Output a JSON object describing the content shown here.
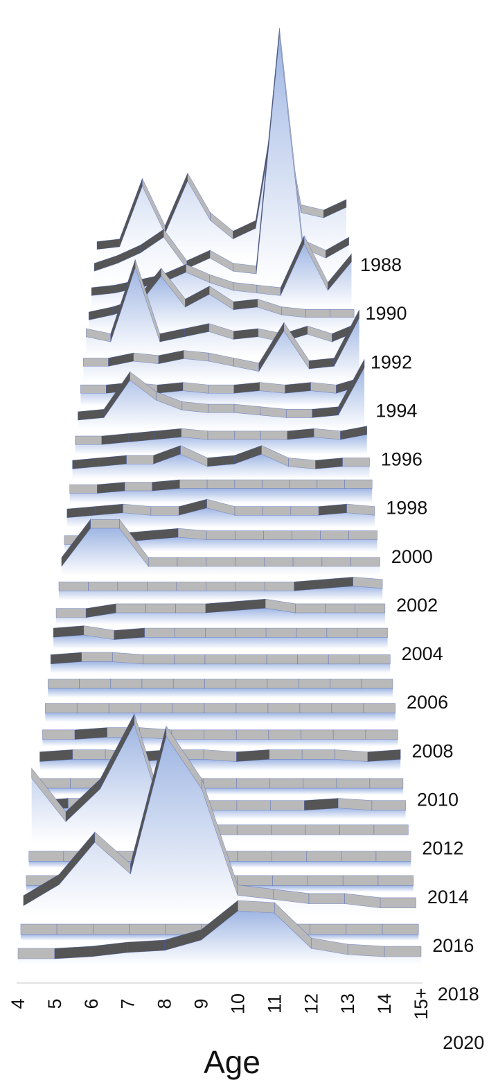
{
  "chart_data": {
    "type": "area",
    "title": "",
    "xlabel": "Age",
    "ylabel": "",
    "categories": [
      "4",
      "5",
      "6",
      "7",
      "8",
      "9",
      "10",
      "11",
      "12",
      "13",
      "14",
      "15+"
    ],
    "year_labels": [
      "1988",
      "1990",
      "1992",
      "1994",
      "1996",
      "1998",
      "2000",
      "2002",
      "2004",
      "2006",
      "2008",
      "2010",
      "2012",
      "2014",
      "2016",
      "2018",
      "2020"
    ],
    "ylim": [
      0,
      1
    ],
    "grid": false,
    "legend": "none",
    "colors": {
      "ribbon_top": "#b9b9b9",
      "ribbon_dark": "#555555",
      "fill_top": "#9fb6e3",
      "fill_bottom": "#ffffff",
      "baseline": "#3a56b8"
    },
    "series": [
      {
        "values": [
          0.04,
          0.05,
          0.28,
          0.1,
          0.3,
          0.15,
          0.08,
          0.12,
          0.65,
          0.18,
          0.16,
          0.2
        ]
      },
      {
        "values": [
          0.05,
          0.08,
          0.12,
          0.18,
          0.06,
          0.1,
          0.05,
          0.04,
          0.95,
          0.14,
          0.1,
          0.15
        ]
      },
      {
        "values": [
          0.05,
          0.06,
          0.08,
          0.1,
          0.14,
          0.1,
          0.07,
          0.06,
          0.05,
          0.25,
          0.07,
          0.18
        ]
      },
      {
        "values": [
          0.05,
          0.07,
          0.1,
          0.22,
          0.1,
          0.15,
          0.09,
          0.1,
          0.07,
          0.06,
          0.06,
          0.06
        ]
      },
      {
        "values": [
          0.08,
          0.06,
          0.35,
          0.06,
          0.08,
          0.1,
          0.07,
          0.08,
          0.06,
          0.09,
          0.06,
          0.1
        ]
      },
      {
        "values": [
          0.06,
          0.06,
          0.08,
          0.07,
          0.09,
          0.08,
          0.06,
          0.04,
          0.2,
          0.05,
          0.06,
          0.25
        ]
      },
      {
        "values": [
          0.05,
          0.05,
          0.06,
          0.05,
          0.06,
          0.05,
          0.05,
          0.06,
          0.05,
          0.06,
          0.05,
          0.08
        ]
      },
      {
        "values": [
          0.04,
          0.05,
          0.2,
          0.12,
          0.08,
          0.07,
          0.07,
          0.06,
          0.05,
          0.05,
          0.06,
          0.25
        ]
      },
      {
        "values": [
          0.04,
          0.04,
          0.05,
          0.06,
          0.07,
          0.06,
          0.06,
          0.06,
          0.06,
          0.07,
          0.06,
          0.08
        ]
      },
      {
        "values": [
          0.04,
          0.05,
          0.06,
          0.06,
          0.1,
          0.05,
          0.06,
          0.1,
          0.05,
          0.04,
          0.05,
          0.05
        ]
      },
      {
        "values": [
          0.04,
          0.04,
          0.05,
          0.05,
          0.06,
          0.06,
          0.06,
          0.06,
          0.06,
          0.06,
          0.06,
          0.06
        ]
      },
      {
        "values": [
          0.04,
          0.05,
          0.06,
          0.05,
          0.05,
          0.08,
          0.05,
          0.05,
          0.05,
          0.05,
          0.06,
          0.05
        ]
      },
      {
        "values": [
          0.03,
          0.03,
          0.04,
          0.05,
          0.06,
          0.05,
          0.05,
          0.05,
          0.05,
          0.05,
          0.05,
          0.05
        ]
      },
      {
        "values": [
          0.04,
          0.2,
          0.2,
          0.04,
          0.04,
          0.04,
          0.04,
          0.04,
          0.04,
          0.04,
          0.04,
          0.04
        ]
      },
      {
        "values": [
          0.04,
          0.04,
          0.04,
          0.04,
          0.04,
          0.04,
          0.04,
          0.04,
          0.04,
          0.05,
          0.06,
          0.05
        ]
      },
      {
        "values": [
          0.03,
          0.03,
          0.05,
          0.05,
          0.05,
          0.05,
          0.06,
          0.07,
          0.05,
          0.05,
          0.05,
          0.05
        ]
      },
      {
        "values": [
          0.05,
          0.06,
          0.04,
          0.05,
          0.05,
          0.05,
          0.05,
          0.05,
          0.05,
          0.05,
          0.05,
          0.05
        ]
      },
      {
        "values": [
          0.04,
          0.05,
          0.05,
          0.04,
          0.04,
          0.04,
          0.04,
          0.04,
          0.04,
          0.04,
          0.04,
          0.04
        ]
      },
      {
        "values": [
          0.04,
          0.04,
          0.04,
          0.04,
          0.04,
          0.04,
          0.04,
          0.04,
          0.04,
          0.04,
          0.04,
          0.04
        ]
      },
      {
        "values": [
          0.04,
          0.04,
          0.04,
          0.04,
          0.04,
          0.04,
          0.04,
          0.04,
          0.04,
          0.04,
          0.04,
          0.04
        ]
      },
      {
        "values": [
          0.03,
          0.03,
          0.04,
          0.04,
          0.03,
          0.03,
          0.03,
          0.03,
          0.03,
          0.03,
          0.03,
          0.03
        ]
      },
      {
        "values": [
          0.04,
          0.05,
          0.05,
          0.04,
          0.05,
          0.05,
          0.04,
          0.05,
          0.05,
          0.05,
          0.04,
          0.05
        ]
      },
      {
        "values": [
          0.03,
          0.03,
          0.03,
          0.03,
          0.03,
          0.03,
          0.03,
          0.03,
          0.03,
          0.03,
          0.03,
          0.03
        ]
      },
      {
        "values": [
          0.04,
          0.05,
          0.05,
          0.04,
          0.05,
          0.04,
          0.04,
          0.04,
          0.04,
          0.05,
          0.04,
          0.04
        ]
      },
      {
        "values": [
          0.3,
          0.1,
          0.25,
          0.55,
          0.04,
          0.04,
          0.04,
          0.04,
          0.04,
          0.04,
          0.04,
          0.04
        ]
      },
      {
        "values": [
          0.03,
          0.03,
          0.03,
          0.03,
          0.03,
          0.03,
          0.03,
          0.03,
          0.03,
          0.03,
          0.03,
          0.03
        ]
      },
      {
        "values": [
          0.03,
          0.03,
          0.03,
          0.03,
          0.03,
          0.03,
          0.03,
          0.03,
          0.03,
          0.03,
          0.03,
          0.03
        ]
      },
      {
        "values": [
          0.05,
          0.15,
          0.35,
          0.2,
          0.85,
          0.6,
          0.1,
          0.08,
          0.06,
          0.06,
          0.04,
          0.04
        ]
      },
      {
        "values": [
          0.03,
          0.03,
          0.03,
          0.03,
          0.03,
          0.03,
          0.03,
          0.03,
          0.03,
          0.03,
          0.03,
          0.03
        ]
      },
      {
        "values": [
          0.03,
          0.03,
          0.04,
          0.06,
          0.07,
          0.12,
          0.26,
          0.25,
          0.08,
          0.05,
          0.04,
          0.04
        ]
      }
    ]
  }
}
